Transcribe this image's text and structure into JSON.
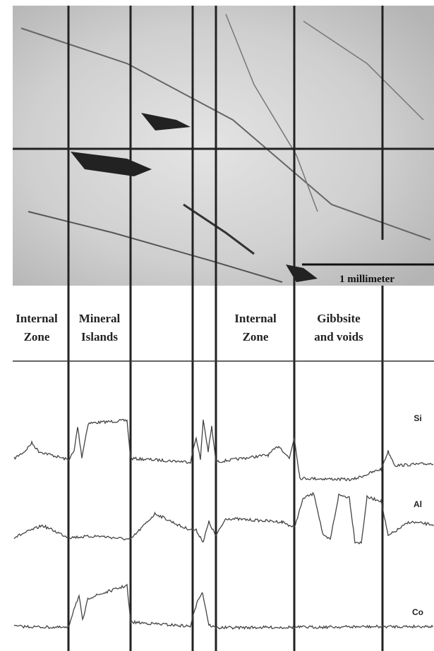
{
  "zone_labels": [
    {
      "lines": [
        "Internal",
        "Zone"
      ]
    },
    {
      "lines": [
        "Mineral",
        "Islands"
      ]
    },
    {
      "lines": [
        "Internal",
        "Zone"
      ]
    },
    {
      "lines": [
        "Gibbsite",
        "and voids"
      ]
    }
  ],
  "scale_bar": "1 millimeter",
  "elements": [
    "Si",
    "Al",
    "Co"
  ]
}
